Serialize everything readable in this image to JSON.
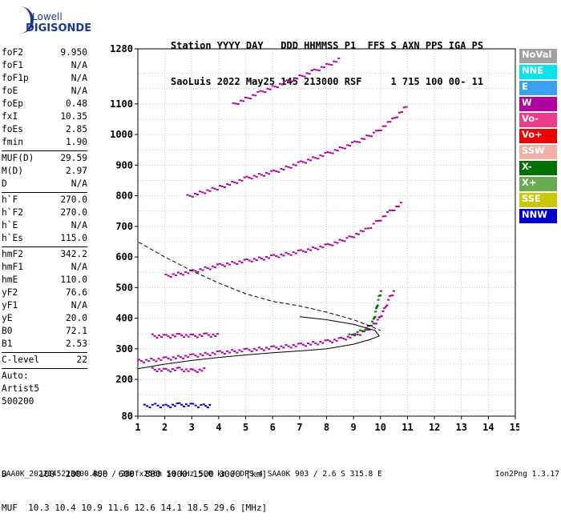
{
  "logo": {
    "line1": "Lowell",
    "line2": "DIGISONDE"
  },
  "header": {
    "line1": "Station YYYY DAY   DDD HHMMSS P1  FFS S AXN PPS IGA PS",
    "line2": "SaoLuis 2022 May25 145 213000 RSF     1 715 100 00- 11"
  },
  "params": [
    {
      "k": "foF2",
      "v": "9.950"
    },
    {
      "k": "foF1",
      "v": "N/A"
    },
    {
      "k": "foF1p",
      "v": "N/A"
    },
    {
      "k": "foE",
      "v": "N/A"
    },
    {
      "k": "foEp",
      "v": "0.48"
    },
    {
      "k": "fxI",
      "v": "10.35"
    },
    {
      "k": "foEs",
      "v": "2.85"
    },
    {
      "k": "fmin",
      "v": "1.90"
    },
    {
      "sep": true
    },
    {
      "k": "MUF(D)",
      "v": "29.59"
    },
    {
      "k": "M(D)",
      "v": "2.97"
    },
    {
      "k": "D",
      "v": "N/A"
    },
    {
      "sep": true
    },
    {
      "k": "h`F",
      "v": "270.0"
    },
    {
      "k": "h`F2",
      "v": "270.0"
    },
    {
      "k": "h`E",
      "v": "N/A"
    },
    {
      "k": "h`Es",
      "v": "115.0"
    },
    {
      "sep": true
    },
    {
      "k": "hmF2",
      "v": "342.2"
    },
    {
      "k": "hmF1",
      "v": "N/A"
    },
    {
      "k": "hmE",
      "v": "110.0"
    },
    {
      "k": "yF2",
      "v": "76.6"
    },
    {
      "k": "yF1",
      "v": "N/A"
    },
    {
      "k": "yE",
      "v": "20.0"
    },
    {
      "k": "B0",
      "v": "72.1"
    },
    {
      "k": "B1",
      "v": "2.53"
    },
    {
      "sep": true
    },
    {
      "k": "C-level",
      "v": "22"
    },
    {
      "sep": true
    },
    {
      "t": "Auto:"
    },
    {
      "t": "Artist5"
    },
    {
      "t": "500200"
    }
  ],
  "legend": [
    {
      "label": "NoVal",
      "color": "#a0a0a0"
    },
    {
      "label": "NNE",
      "color": "#00e5ee"
    },
    {
      "label": "E",
      "color": "#3aa0ee"
    },
    {
      "label": "W",
      "color": "#b0009e"
    },
    {
      "label": "Vo-",
      "color": "#ee3a8c"
    },
    {
      "label": "Vo+",
      "color": "#ee0000"
    },
    {
      "label": "SSW",
      "color": "#f0b0a8"
    },
    {
      "label": "X-",
      "color": "#007000"
    },
    {
      "label": "X+",
      "color": "#6aaa50"
    },
    {
      "label": "SSE",
      "color": "#c8c800"
    },
    {
      "label": "NNW",
      "color": "#0000cc"
    }
  ],
  "footer": {
    "line1": "D      100  200  400  600  800 1000 1500 3000 [km]",
    "line2": "MUF  10.3 10.4 10.9 11.6 12.6 14.1 18.5 29.6 [MHz]"
  },
  "bottom": {
    "left": "SAA0K_2022145213000.RSF / 280fx256h 50 kHz 5.0 km / DPS-4 SAA0K 903 / 2.6 S 315.8 E",
    "right": "Ion2Png 1.3.17"
  },
  "chart_data": {
    "type": "scatter",
    "x_ticks": [
      1,
      2,
      3,
      4,
      5,
      6,
      7,
      8,
      9,
      10,
      11,
      12,
      13,
      14,
      15
    ],
    "y_ticks": [
      80,
      200,
      300,
      400,
      500,
      600,
      700,
      800,
      900,
      1000,
      1100,
      1280
    ],
    "xlim": [
      1,
      15
    ],
    "ylim": [
      80,
      1280
    ],
    "grid": true,
    "x_unit": "MHz",
    "y_unit": "km",
    "traces": [
      {
        "name": "F2 o-trace",
        "color": "#b0009e",
        "points": [
          [
            1.0,
            262
          ],
          [
            2.0,
            270
          ],
          [
            3.0,
            280
          ],
          [
            4.0,
            290
          ],
          [
            5.0,
            298
          ],
          [
            6.0,
            306
          ],
          [
            7.0,
            315
          ],
          [
            8.0,
            326
          ],
          [
            8.5,
            334
          ],
          [
            9.0,
            346
          ],
          [
            9.4,
            360
          ],
          [
            9.7,
            380
          ],
          [
            9.9,
            400
          ],
          [
            10.1,
            430
          ],
          [
            10.3,
            470
          ],
          [
            10.5,
            495
          ]
        ]
      },
      {
        "name": "F2 x-trace",
        "color": "#007000",
        "points": [
          [
            8.8,
            345
          ],
          [
            9.2,
            358
          ],
          [
            9.5,
            372
          ],
          [
            9.7,
            395
          ],
          [
            9.8,
            430
          ],
          [
            9.9,
            470
          ],
          [
            10.0,
            495
          ]
        ]
      },
      {
        "name": "2F2",
        "color": "#b0009e",
        "points": [
          [
            2.0,
            540
          ],
          [
            3.0,
            555
          ],
          [
            4.0,
            575
          ],
          [
            5.0,
            590
          ],
          [
            6.0,
            604
          ],
          [
            7.0,
            620
          ],
          [
            8.0,
            640
          ],
          [
            8.8,
            665
          ],
          [
            9.4,
            690
          ],
          [
            9.8,
            715
          ],
          [
            10.3,
            750
          ],
          [
            10.8,
            780
          ]
        ]
      },
      {
        "name": "3F2",
        "color": "#b0009e",
        "points": [
          [
            2.8,
            800
          ],
          [
            4.0,
            830
          ],
          [
            5.0,
            860
          ],
          [
            6.0,
            880
          ],
          [
            7.0,
            910
          ],
          [
            8.0,
            940
          ],
          [
            9.0,
            975
          ],
          [
            9.8,
            1010
          ],
          [
            10.4,
            1050
          ],
          [
            11.0,
            1100
          ]
        ]
      },
      {
        "name": "4F2",
        "color": "#b0009e",
        "points": [
          [
            4.5,
            1100
          ],
          [
            5.5,
            1140
          ],
          [
            6.5,
            1175
          ],
          [
            7.5,
            1210
          ],
          [
            8.5,
            1250
          ]
        ]
      },
      {
        "name": "Es",
        "color": "#0000cc",
        "points": [
          [
            1.2,
            115
          ],
          [
            1.6,
            118
          ],
          [
            2.0,
            115
          ],
          [
            2.5,
            120
          ],
          [
            3.0,
            118
          ],
          [
            3.4,
            116
          ],
          [
            3.7,
            117
          ]
        ]
      },
      {
        "name": "2Es",
        "color": "#b0009e",
        "points": [
          [
            1.5,
            235
          ],
          [
            2.0,
            232
          ],
          [
            2.5,
            236
          ],
          [
            3.0,
            230
          ],
          [
            3.5,
            235
          ]
        ]
      },
      {
        "name": "3Es",
        "color": "#b0009e",
        "points": [
          [
            1.5,
            345
          ],
          [
            2.0,
            343
          ],
          [
            2.5,
            347
          ],
          [
            3.0,
            344
          ],
          [
            3.5,
            348
          ],
          [
            4.0,
            346
          ]
        ]
      }
    ],
    "profile_solid": [
      [
        0.0,
        215
      ],
      [
        1.0,
        235
      ],
      [
        2.0,
        250
      ],
      [
        3.0,
        262
      ],
      [
        4.0,
        272
      ],
      [
        5.0,
        280
      ],
      [
        6.0,
        287
      ],
      [
        7.0,
        293
      ],
      [
        8.0,
        300
      ],
      [
        9.0,
        315
      ],
      [
        9.6,
        330
      ],
      [
        9.95,
        342
      ],
      [
        9.8,
        360
      ],
      [
        9.0,
        380
      ],
      [
        8.0,
        395
      ],
      [
        7.0,
        405
      ]
    ],
    "profile_dashed": [
      [
        0.0,
        700
      ],
      [
        1.0,
        650
      ],
      [
        2.0,
        600
      ],
      [
        3.0,
        555
      ],
      [
        4.0,
        515
      ],
      [
        5.0,
        480
      ],
      [
        6.0,
        455
      ],
      [
        7.0,
        440
      ],
      [
        8.0,
        420
      ],
      [
        9.0,
        395
      ],
      [
        9.6,
        375
      ],
      [
        10.0,
        360
      ]
    ]
  }
}
